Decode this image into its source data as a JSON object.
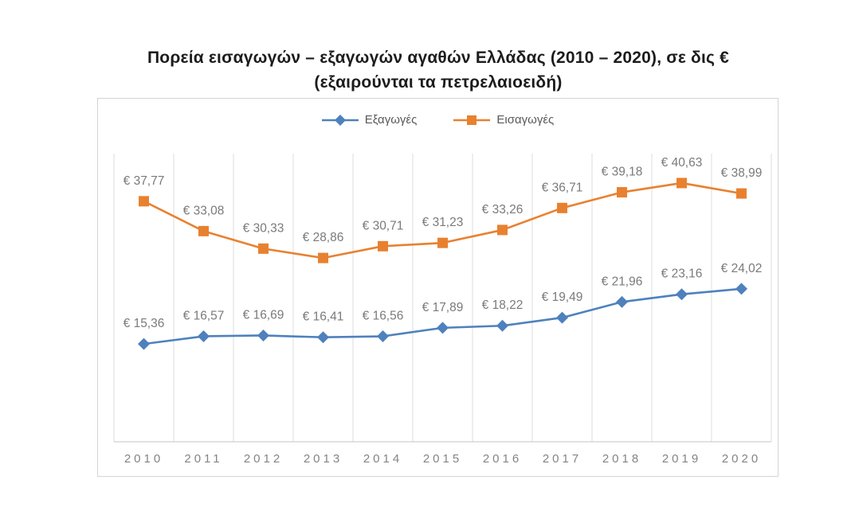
{
  "title": {
    "line1": "Πορεία εισαγωγών – εξαγωγών αγαθών Ελλάδας (2010 – 2020), σε δις €",
    "line2": "(εξαιρούνται τα πετρελαιοειδή)"
  },
  "legend": {
    "items": [
      {
        "label": "Εξαγωγές"
      },
      {
        "label": "Εισαγωγές"
      }
    ]
  },
  "chart_data": {
    "type": "line",
    "title": "Πορεία εισαγωγών – εξαγωγών αγαθών Ελλάδας (2010 – 2020), σε δις € (εξαιρούνται τα πετρελαιοειδή)",
    "categories": [
      "2010",
      "2011",
      "2012",
      "2013",
      "2014",
      "2015",
      "2016",
      "2017",
      "2018",
      "2019",
      "2020"
    ],
    "series": [
      {
        "key": "exports",
        "name": "Εξαγωγές",
        "marker": "diamond",
        "color": "#4E81BD",
        "values": [
          15.36,
          16.57,
          16.69,
          16.41,
          16.56,
          17.89,
          18.22,
          19.49,
          21.96,
          23.16,
          24.02
        ],
        "value_labels": [
          "€ 15,36",
          "€ 16,57",
          "€ 16,69",
          "€ 16,41",
          "€ 16,56",
          "€ 17,89",
          "€ 18,22",
          "€ 19,49",
          "€ 21,96",
          "€ 23,16",
          "€ 24,02"
        ]
      },
      {
        "key": "imports",
        "name": "Εισαγωγές",
        "marker": "square",
        "color": "#E8812F",
        "values": [
          37.77,
          33.08,
          30.33,
          28.86,
          30.71,
          31.23,
          33.26,
          36.71,
          39.18,
          40.63,
          38.99
        ],
        "value_labels": [
          "€ 37,77",
          "€ 33,08",
          "€ 30,33",
          "€ 28,86",
          "€ 30,71",
          "€ 31,23",
          "€ 33,26",
          "€ 36,71",
          "€ 39,18",
          "€ 40,63",
          "€ 38,99"
        ]
      }
    ],
    "xlabel": "",
    "ylabel": "",
    "ylim": [
      0,
      45.25
    ],
    "grid": "vertical",
    "legend_position": "top",
    "colors": {
      "gridline": "#DCDCDC",
      "axis_line": "#C4C4C4",
      "tick_label": "#848484",
      "data_label": "#7A7A7A"
    }
  }
}
